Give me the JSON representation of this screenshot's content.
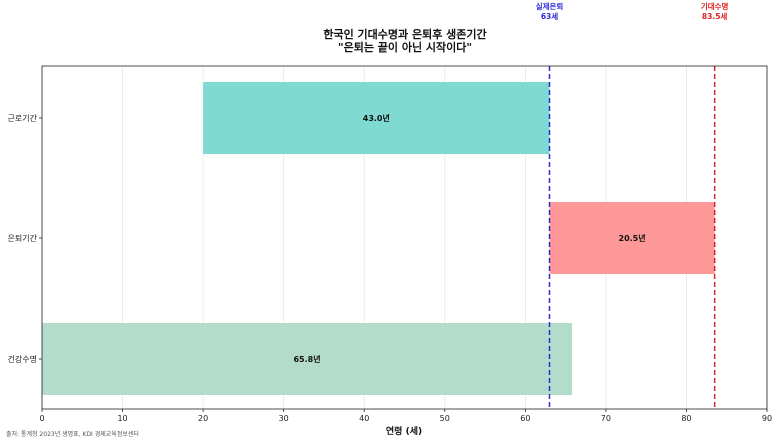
{
  "chart_data": {
    "type": "bar",
    "orientation": "horizontal",
    "title": "한국인 기대수명과 은퇴후 생존기간",
    "subtitle": "\"은퇴는 끝이 아닌 시작이다\"",
    "xlabel": "연령 (세)",
    "ylabel": "",
    "xlim": [
      0,
      90
    ],
    "xticks": [
      0,
      10,
      20,
      30,
      40,
      50,
      60,
      70,
      80,
      90
    ],
    "grid": "x",
    "bars": [
      {
        "category": "근로기간",
        "start": 20,
        "end": 63,
        "label": "43.0년",
        "color": "#7fdbd2"
      },
      {
        "category": "은퇴기간",
        "start": 63,
        "end": 83.5,
        "label": "20.5년",
        "color": "#ff9999"
      },
      {
        "category": "건강수명",
        "start": 0,
        "end": 65.8,
        "label": "65.8년",
        "color": "#b3dccb"
      }
    ],
    "reference_lines": [
      {
        "value": 63,
        "name": "실제은퇴",
        "label": "63세",
        "color": "#2b2bd9"
      },
      {
        "value": 83.5,
        "name": "기대수명",
        "label": "83.5세",
        "color": "#e02020"
      }
    ],
    "source": "출처: 통계청 2023년 생명표, KDI 경제교육정보센터"
  }
}
